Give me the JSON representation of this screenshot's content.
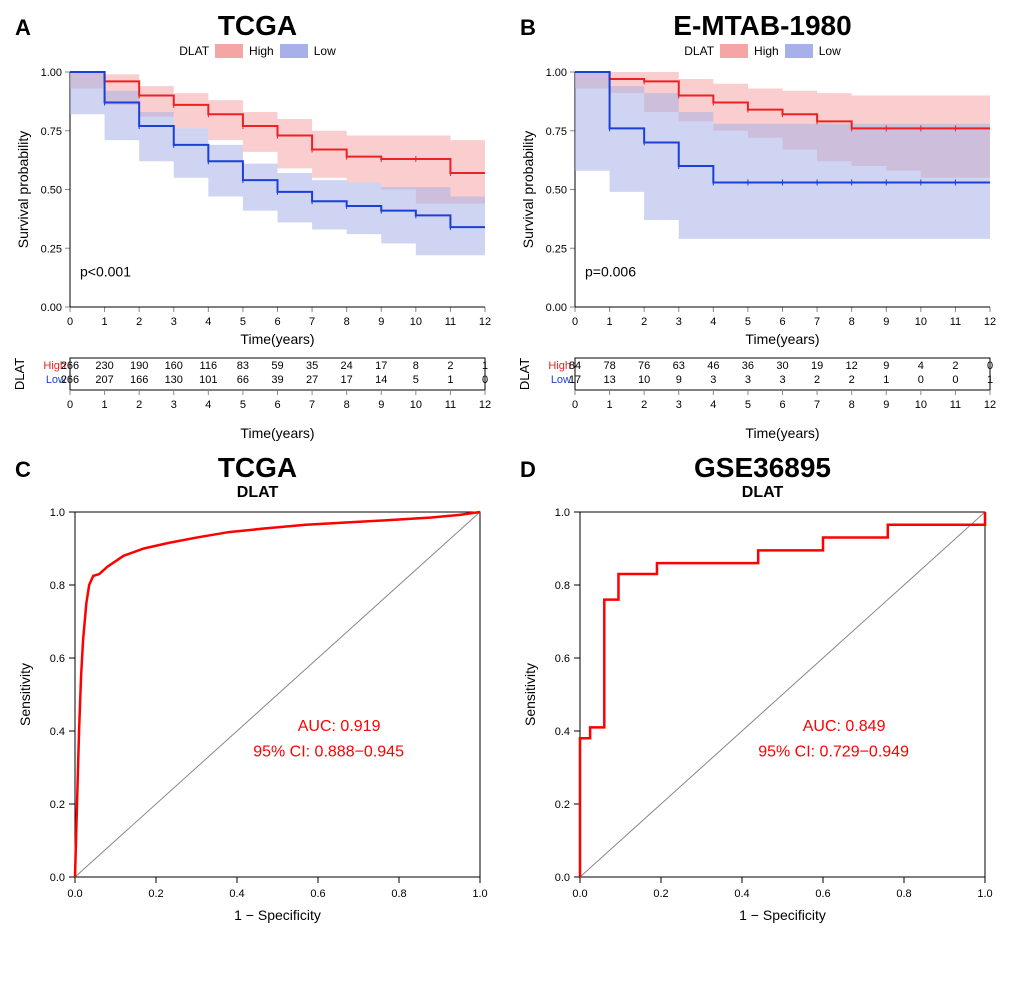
{
  "panels": {
    "A": {
      "label": "A",
      "title": "TCGA"
    },
    "B": {
      "label": "B",
      "title": "E-MTAB-1980"
    },
    "C": {
      "label": "C",
      "title": "TCGA"
    },
    "D": {
      "label": "D",
      "title": "GSE36895"
    }
  },
  "km": {
    "legend_title": "DLAT",
    "legend_items": [
      {
        "label": "High",
        "color": "#ed2024",
        "fill": "#f6a5a7"
      },
      {
        "label": "Low",
        "color": "#1c3fd6",
        "fill": "#a7b0e8"
      }
    ],
    "xlabel": "Time(years)",
    "ylabel": "Survival probability",
    "ylim": [
      0,
      1
    ],
    "yticks": [
      0.0,
      0.25,
      0.5,
      0.75,
      1.0
    ],
    "ytick_labels": [
      "0.00",
      "0.25",
      "0.50",
      "0.75",
      "1.00"
    ],
    "A": {
      "pvalue": "p<0.001",
      "xlim": [
        0,
        12
      ],
      "xticks": [
        0,
        1,
        2,
        3,
        4,
        5,
        6,
        7,
        8,
        9,
        10,
        11,
        12
      ],
      "high": {
        "t": [
          0,
          1,
          2,
          3,
          4,
          5,
          6,
          7,
          8,
          9,
          10,
          11,
          12
        ],
        "s": [
          1.0,
          0.96,
          0.9,
          0.86,
          0.82,
          0.77,
          0.73,
          0.67,
          0.64,
          0.63,
          0.63,
          0.57,
          0.57
        ],
        "lo": [
          1.0,
          0.93,
          0.86,
          0.81,
          0.76,
          0.71,
          0.66,
          0.59,
          0.55,
          0.53,
          0.5,
          0.44,
          0.44
        ],
        "hi": [
          1.0,
          0.99,
          0.94,
          0.91,
          0.88,
          0.83,
          0.8,
          0.75,
          0.73,
          0.73,
          0.73,
          0.71,
          0.71
        ]
      },
      "low": {
        "t": [
          0,
          1,
          2,
          3,
          4,
          5,
          6,
          7,
          8,
          9,
          10,
          11,
          12
        ],
        "s": [
          1.0,
          0.87,
          0.77,
          0.69,
          0.62,
          0.54,
          0.49,
          0.45,
          0.43,
          0.41,
          0.39,
          0.34,
          0.34
        ],
        "lo": [
          1.0,
          0.82,
          0.71,
          0.62,
          0.55,
          0.47,
          0.41,
          0.36,
          0.33,
          0.31,
          0.27,
          0.22,
          0.22
        ],
        "hi": [
          1.0,
          0.92,
          0.83,
          0.76,
          0.69,
          0.61,
          0.57,
          0.54,
          0.53,
          0.51,
          0.51,
          0.47,
          0.47
        ]
      },
      "risk_title": "DLAT",
      "risk_rows": [
        {
          "label": "High",
          "color": "#ed2024",
          "values": [
            266,
            230,
            190,
            160,
            116,
            83,
            59,
            35,
            24,
            17,
            8,
            2,
            1
          ]
        },
        {
          "label": "Low",
          "color": "#1c3fd6",
          "values": [
            266,
            207,
            166,
            130,
            101,
            66,
            39,
            27,
            17,
            14,
            5,
            1,
            0
          ]
        }
      ]
    },
    "B": {
      "pvalue": "p=0.006",
      "xlim": [
        0,
        12
      ],
      "xticks": [
        0,
        1,
        2,
        3,
        4,
        5,
        6,
        7,
        8,
        9,
        10,
        11,
        12
      ],
      "high": {
        "t": [
          0,
          1,
          2,
          3,
          4,
          5,
          6,
          7,
          8,
          9,
          10,
          11,
          12
        ],
        "s": [
          1.0,
          0.97,
          0.96,
          0.9,
          0.87,
          0.84,
          0.82,
          0.79,
          0.76,
          0.76,
          0.76,
          0.76,
          0.76
        ],
        "lo": [
          1.0,
          0.93,
          0.91,
          0.83,
          0.79,
          0.75,
          0.72,
          0.67,
          0.62,
          0.6,
          0.58,
          0.55,
          0.55
        ],
        "hi": [
          1.0,
          1.0,
          1.0,
          0.97,
          0.95,
          0.93,
          0.92,
          0.91,
          0.9,
          0.9,
          0.9,
          0.9,
          0.9
        ]
      },
      "low": {
        "t": [
          0,
          1,
          2,
          3,
          4,
          5,
          6,
          7,
          8,
          9,
          10,
          11,
          12
        ],
        "s": [
          1.0,
          0.76,
          0.7,
          0.6,
          0.53,
          0.53,
          0.53,
          0.53,
          0.53,
          0.53,
          0.53,
          0.53,
          0.53
        ],
        "lo": [
          1.0,
          0.58,
          0.49,
          0.37,
          0.29,
          0.29,
          0.29,
          0.29,
          0.29,
          0.29,
          0.29,
          0.29,
          0.29
        ],
        "hi": [
          1.0,
          0.94,
          0.91,
          0.83,
          0.78,
          0.78,
          0.78,
          0.78,
          0.78,
          0.78,
          0.78,
          0.78,
          0.78
        ]
      },
      "risk_title": "DLAT",
      "risk_rows": [
        {
          "label": "High",
          "color": "#ed2024",
          "values": [
            84,
            78,
            76,
            63,
            46,
            36,
            30,
            19,
            12,
            9,
            4,
            2,
            0
          ]
        },
        {
          "label": "Low",
          "color": "#1c3fd6",
          "values": [
            17,
            13,
            10,
            9,
            3,
            3,
            3,
            2,
            2,
            1,
            0,
            0,
            1
          ]
        }
      ]
    }
  },
  "roc": {
    "xlabel": "1 − Specificity",
    "ylabel": "Sensitivity",
    "subtitle": "DLAT",
    "ticks": [
      0.0,
      0.2,
      0.4,
      0.6,
      0.8,
      1.0
    ],
    "tick_labels": [
      "0.0",
      "0.2",
      "0.4",
      "0.6",
      "0.8",
      "1.0"
    ],
    "curve_color": "#ff0000",
    "diag_color": "#888888",
    "text_color": "#ff0000",
    "C": {
      "auc_line1": "AUC: 0.919",
      "auc_line2": "95% CI: 0.888−0.945",
      "points": [
        [
          0.0,
          0.0
        ],
        [
          0.005,
          0.2
        ],
        [
          0.01,
          0.4
        ],
        [
          0.015,
          0.55
        ],
        [
          0.02,
          0.65
        ],
        [
          0.028,
          0.75
        ],
        [
          0.035,
          0.8
        ],
        [
          0.045,
          0.825
        ],
        [
          0.06,
          0.83
        ],
        [
          0.08,
          0.85
        ],
        [
          0.12,
          0.88
        ],
        [
          0.17,
          0.9
        ],
        [
          0.23,
          0.915
        ],
        [
          0.3,
          0.93
        ],
        [
          0.38,
          0.945
        ],
        [
          0.47,
          0.955
        ],
        [
          0.57,
          0.965
        ],
        [
          0.68,
          0.972
        ],
        [
          0.78,
          0.978
        ],
        [
          0.88,
          0.985
        ],
        [
          0.95,
          0.992
        ],
        [
          1.0,
          1.0
        ]
      ]
    },
    "D": {
      "auc_line1": "AUC: 0.849",
      "auc_line2": "95% CI: 0.729−0.949",
      "points": [
        [
          0.0,
          0.0
        ],
        [
          0.0,
          0.38
        ],
        [
          0.025,
          0.38
        ],
        [
          0.025,
          0.41
        ],
        [
          0.06,
          0.41
        ],
        [
          0.06,
          0.76
        ],
        [
          0.095,
          0.76
        ],
        [
          0.095,
          0.83
        ],
        [
          0.19,
          0.83
        ],
        [
          0.19,
          0.86
        ],
        [
          0.44,
          0.86
        ],
        [
          0.44,
          0.895
        ],
        [
          0.6,
          0.895
        ],
        [
          0.6,
          0.93
        ],
        [
          0.76,
          0.93
        ],
        [
          0.76,
          0.965
        ],
        [
          1.0,
          0.965
        ],
        [
          1.0,
          1.0
        ]
      ]
    }
  },
  "colors": {
    "background": "#ffffff"
  }
}
